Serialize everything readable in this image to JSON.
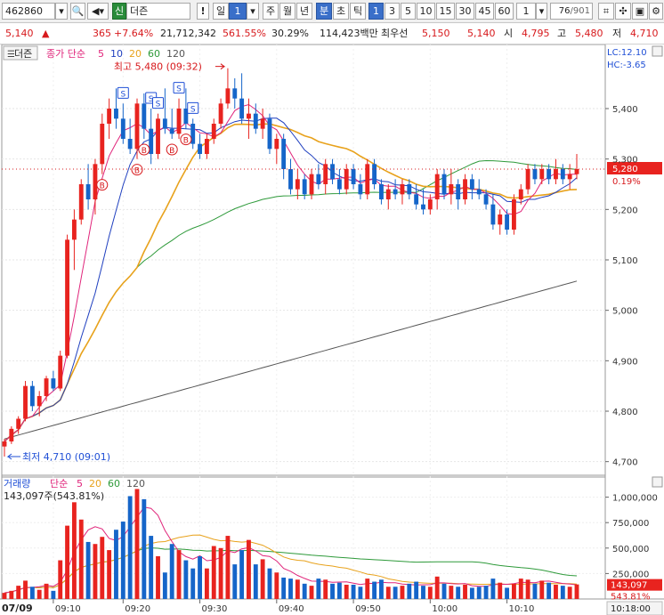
{
  "toolbar": {
    "code": "462860",
    "name_badge": "신",
    "name": "더즌",
    "period_label": "일",
    "period_value": "1",
    "periods": [
      "주",
      "월",
      "년",
      "분",
      "초",
      "틱"
    ],
    "minutes": [
      "1",
      "3",
      "5",
      "10",
      "15",
      "30",
      "45",
      "60"
    ],
    "count_value": "1",
    "page": "76",
    "page_total": "/901"
  },
  "quote": {
    "price": "5,140",
    "arrow": "▲",
    "change": "365",
    "change_pct": "+7.64%",
    "volume": "21,712,342",
    "volume_ratio": "561.55%",
    "turnover": "30.29%",
    "amount": "114,423백만",
    "best_label": "최우선",
    "ask": "5,150",
    "bid": "5,140",
    "open_label": "시",
    "open": "4,795",
    "high_label": "고",
    "high": "5,480",
    "low_label": "저",
    "low": "4,710"
  },
  "price_legend": {
    "title": "더즌",
    "indicator": "종가 단순",
    "periods": [
      "5",
      "10",
      "20",
      "60",
      "120"
    ]
  },
  "volume_legend": {
    "title": "거래량",
    "indicator": "단순",
    "periods": [
      "5",
      "20",
      "60",
      "120"
    ],
    "current": "143,097주(543.81%)"
  },
  "annotations": {
    "high": "최고 5,480 (09:32)",
    "low": "최저 4,710 (09:01)",
    "lc": "LC:12.10",
    "hc": "HC:-3.65"
  },
  "current_tag": {
    "price": "5,280",
    "pct": "0.19%",
    "vol": "143,097",
    "vol_pct": "543.81%"
  },
  "date_label": "07/09",
  "time_readout": "10:18:00",
  "colors": {
    "up": "#e8231f",
    "down": "#1565c9",
    "ma5": "#e0247a",
    "ma10": "#1f3fbf",
    "ma20": "#e8a21c",
    "ma60": "#2e9a3a",
    "ma120": "#555555"
  },
  "chart_data": {
    "type": "candlestick",
    "x_ticks": [
      "09:10",
      "09:20",
      "09:30",
      "09:40",
      "09:50",
      "10:00",
      "10:10"
    ],
    "price_ticks": [
      4700,
      4800,
      4900,
      5000,
      5100,
      5200,
      5300,
      5400
    ],
    "price_ylim": [
      4680,
      5520
    ],
    "volume_ticks": [
      250000,
      500000,
      750000,
      1000000
    ],
    "volume_tick_labels": [
      "250,000",
      "500,000",
      "750,000",
      "1,000,000"
    ],
    "volume_ylim": [
      0,
      1180000
    ],
    "candles": [
      {
        "o": 4730,
        "h": 4745,
        "l": 4710,
        "c": 4740,
        "v": 60000
      },
      {
        "o": 4740,
        "h": 4770,
        "l": 4735,
        "c": 4765,
        "v": 80000
      },
      {
        "o": 4765,
        "h": 4790,
        "l": 4755,
        "c": 4785,
        "v": 130000
      },
      {
        "o": 4785,
        "h": 4860,
        "l": 4780,
        "c": 4850,
        "v": 180000
      },
      {
        "o": 4850,
        "h": 4860,
        "l": 4800,
        "c": 4810,
        "v": 120000
      },
      {
        "o": 4810,
        "h": 4840,
        "l": 4790,
        "c": 4830,
        "v": 90000
      },
      {
        "o": 4830,
        "h": 4870,
        "l": 4820,
        "c": 4865,
        "v": 150000
      },
      {
        "o": 4865,
        "h": 4880,
        "l": 4840,
        "c": 4845,
        "v": 80000
      },
      {
        "o": 4845,
        "h": 4920,
        "l": 4840,
        "c": 4910,
        "v": 380000
      },
      {
        "o": 4910,
        "h": 5150,
        "l": 4905,
        "c": 5140,
        "v": 720000
      },
      {
        "o": 5140,
        "h": 5200,
        "l": 5080,
        "c": 5180,
        "v": 950000
      },
      {
        "o": 5180,
        "h": 5260,
        "l": 5170,
        "c": 5250,
        "v": 780000
      },
      {
        "o": 5250,
        "h": 5290,
        "l": 5200,
        "c": 5220,
        "v": 560000
      },
      {
        "o": 5220,
        "h": 5300,
        "l": 5190,
        "c": 5290,
        "v": 540000
      },
      {
        "o": 5290,
        "h": 5390,
        "l": 5270,
        "c": 5370,
        "v": 610000
      },
      {
        "o": 5370,
        "h": 5420,
        "l": 5340,
        "c": 5400,
        "v": 480000
      },
      {
        "o": 5400,
        "h": 5440,
        "l": 5360,
        "c": 5380,
        "v": 680000
      },
      {
        "o": 5380,
        "h": 5410,
        "l": 5330,
        "c": 5340,
        "v": 760000
      },
      {
        "o": 5340,
        "h": 5380,
        "l": 5310,
        "c": 5320,
        "v": 1010000
      },
      {
        "o": 5320,
        "h": 5420,
        "l": 5300,
        "c": 5410,
        "v": 1080000
      },
      {
        "o": 5410,
        "h": 5430,
        "l": 5340,
        "c": 5360,
        "v": 980000
      },
      {
        "o": 5360,
        "h": 5400,
        "l": 5290,
        "c": 5310,
        "v": 620000
      },
      {
        "o": 5310,
        "h": 5390,
        "l": 5300,
        "c": 5380,
        "v": 420000
      },
      {
        "o": 5380,
        "h": 5440,
        "l": 5350,
        "c": 5360,
        "v": 260000
      },
      {
        "o": 5360,
        "h": 5400,
        "l": 5340,
        "c": 5350,
        "v": 540000
      },
      {
        "o": 5350,
        "h": 5420,
        "l": 5340,
        "c": 5400,
        "v": 480000
      },
      {
        "o": 5400,
        "h": 5440,
        "l": 5360,
        "c": 5370,
        "v": 380000
      },
      {
        "o": 5370,
        "h": 5380,
        "l": 5320,
        "c": 5330,
        "v": 300000
      },
      {
        "o": 5330,
        "h": 5350,
        "l": 5300,
        "c": 5310,
        "v": 420000
      },
      {
        "o": 5310,
        "h": 5350,
        "l": 5300,
        "c": 5340,
        "v": 300000
      },
      {
        "o": 5340,
        "h": 5380,
        "l": 5330,
        "c": 5370,
        "v": 520000
      },
      {
        "o": 5370,
        "h": 5420,
        "l": 5360,
        "c": 5410,
        "v": 500000
      },
      {
        "o": 5410,
        "h": 5480,
        "l": 5400,
        "c": 5440,
        "v": 620000
      },
      {
        "o": 5440,
        "h": 5460,
        "l": 5400,
        "c": 5420,
        "v": 340000
      },
      {
        "o": 5420,
        "h": 5470,
        "l": 5370,
        "c": 5380,
        "v": 480000
      },
      {
        "o": 5380,
        "h": 5420,
        "l": 5340,
        "c": 5390,
        "v": 580000
      },
      {
        "o": 5390,
        "h": 5410,
        "l": 5350,
        "c": 5360,
        "v": 340000
      },
      {
        "o": 5360,
        "h": 5400,
        "l": 5340,
        "c": 5380,
        "v": 390000
      },
      {
        "o": 5380,
        "h": 5390,
        "l": 5310,
        "c": 5320,
        "v": 300000
      },
      {
        "o": 5320,
        "h": 5350,
        "l": 5290,
        "c": 5340,
        "v": 260000
      },
      {
        "o": 5340,
        "h": 5350,
        "l": 5260,
        "c": 5280,
        "v": 210000
      },
      {
        "o": 5280,
        "h": 5300,
        "l": 5230,
        "c": 5240,
        "v": 200000
      },
      {
        "o": 5240,
        "h": 5280,
        "l": 5220,
        "c": 5260,
        "v": 190000
      },
      {
        "o": 5260,
        "h": 5270,
        "l": 5220,
        "c": 5230,
        "v": 150000
      },
      {
        "o": 5230,
        "h": 5280,
        "l": 5220,
        "c": 5270,
        "v": 130000
      },
      {
        "o": 5270,
        "h": 5290,
        "l": 5240,
        "c": 5250,
        "v": 200000
      },
      {
        "o": 5250,
        "h": 5300,
        "l": 5230,
        "c": 5290,
        "v": 190000
      },
      {
        "o": 5290,
        "h": 5300,
        "l": 5250,
        "c": 5260,
        "v": 150000
      },
      {
        "o": 5260,
        "h": 5280,
        "l": 5230,
        "c": 5240,
        "v": 160000
      },
      {
        "o": 5240,
        "h": 5290,
        "l": 5230,
        "c": 5280,
        "v": 140000
      },
      {
        "o": 5280,
        "h": 5290,
        "l": 5240,
        "c": 5250,
        "v": 140000
      },
      {
        "o": 5250,
        "h": 5270,
        "l": 5220,
        "c": 5230,
        "v": 120000
      },
      {
        "o": 5230,
        "h": 5300,
        "l": 5220,
        "c": 5290,
        "v": 200000
      },
      {
        "o": 5290,
        "h": 5300,
        "l": 5240,
        "c": 5250,
        "v": 170000
      },
      {
        "o": 5250,
        "h": 5260,
        "l": 5210,
        "c": 5220,
        "v": 190000
      },
      {
        "o": 5220,
        "h": 5250,
        "l": 5200,
        "c": 5240,
        "v": 120000
      },
      {
        "o": 5240,
        "h": 5260,
        "l": 5220,
        "c": 5230,
        "v": 120000
      },
      {
        "o": 5230,
        "h": 5260,
        "l": 5210,
        "c": 5250,
        "v": 130000
      },
      {
        "o": 5250,
        "h": 5260,
        "l": 5220,
        "c": 5230,
        "v": 150000
      },
      {
        "o": 5230,
        "h": 5250,
        "l": 5200,
        "c": 5210,
        "v": 170000
      },
      {
        "o": 5210,
        "h": 5240,
        "l": 5190,
        "c": 5200,
        "v": 130000
      },
      {
        "o": 5200,
        "h": 5230,
        "l": 5190,
        "c": 5220,
        "v": 120000
      },
      {
        "o": 5220,
        "h": 5280,
        "l": 5200,
        "c": 5270,
        "v": 220000
      },
      {
        "o": 5270,
        "h": 5280,
        "l": 5220,
        "c": 5230,
        "v": 150000
      },
      {
        "o": 5230,
        "h": 5280,
        "l": 5210,
        "c": 5250,
        "v": 130000
      },
      {
        "o": 5250,
        "h": 5260,
        "l": 5200,
        "c": 5220,
        "v": 120000
      },
      {
        "o": 5220,
        "h": 5270,
        "l": 5210,
        "c": 5260,
        "v": 140000
      },
      {
        "o": 5260,
        "h": 5270,
        "l": 5220,
        "c": 5240,
        "v": 110000
      },
      {
        "o": 5240,
        "h": 5260,
        "l": 5220,
        "c": 5230,
        "v": 120000
      },
      {
        "o": 5230,
        "h": 5240,
        "l": 5200,
        "c": 5210,
        "v": 130000
      },
      {
        "o": 5210,
        "h": 5230,
        "l": 5160,
        "c": 5170,
        "v": 200000
      },
      {
        "o": 5170,
        "h": 5200,
        "l": 5150,
        "c": 5190,
        "v": 160000
      },
      {
        "o": 5190,
        "h": 5200,
        "l": 5150,
        "c": 5160,
        "v": 110000
      },
      {
        "o": 5160,
        "h": 5230,
        "l": 5150,
        "c": 5220,
        "v": 150000
      },
      {
        "o": 5220,
        "h": 5250,
        "l": 5210,
        "c": 5240,
        "v": 200000
      },
      {
        "o": 5240,
        "h": 5290,
        "l": 5230,
        "c": 5280,
        "v": 190000
      },
      {
        "o": 5280,
        "h": 5290,
        "l": 5250,
        "c": 5260,
        "v": 150000
      },
      {
        "o": 5260,
        "h": 5290,
        "l": 5250,
        "c": 5280,
        "v": 180000
      },
      {
        "o": 5280,
        "h": 5290,
        "l": 5250,
        "c": 5260,
        "v": 160000
      },
      {
        "o": 5260,
        "h": 5300,
        "l": 5250,
        "c": 5280,
        "v": 140000
      },
      {
        "o": 5280,
        "h": 5290,
        "l": 5250,
        "c": 5260,
        "v": 130000
      },
      {
        "o": 5260,
        "h": 5290,
        "l": 5240,
        "c": 5270,
        "v": 120000
      },
      {
        "o": 5270,
        "h": 5310,
        "l": 5260,
        "c": 5280,
        "v": 143097
      }
    ],
    "ma120": {
      "start": 4745,
      "end": 5058
    }
  }
}
